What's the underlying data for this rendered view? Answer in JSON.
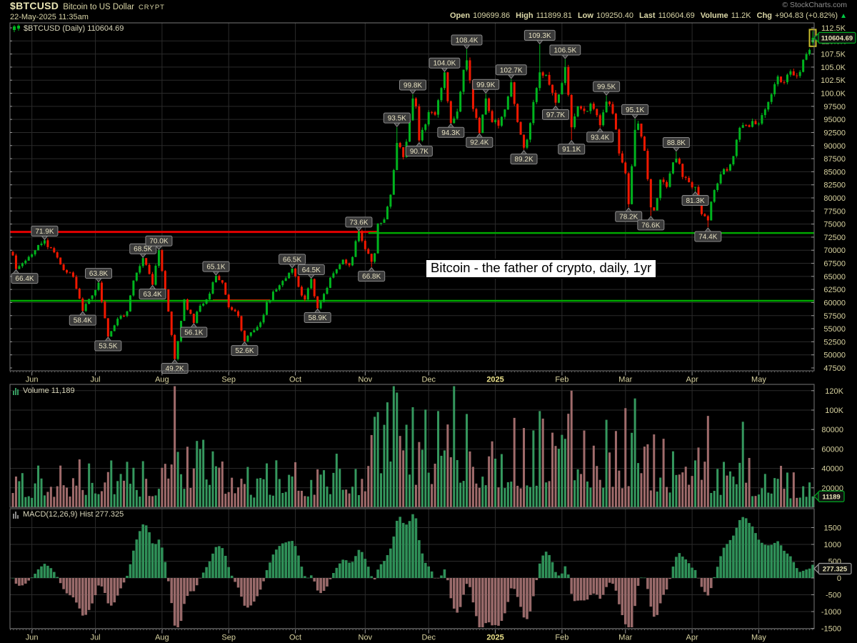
{
  "header": {
    "symbol": "$BTCUSD",
    "name": "Bitcoin to US Dollar",
    "exchange": "CRYPT",
    "datetime": "22-May-2025 11:35am",
    "copyright": "© StockCharts.com",
    "quote": {
      "open_label": "Open",
      "open": "109699.86",
      "high_label": "High",
      "high": "111899.81",
      "low_label": "Low",
      "low": "109250.40",
      "last_label": "Last",
      "last": "110604.69",
      "volume_label": "Volume",
      "volume": "11.2K",
      "chg_label": "Chg",
      "chg": "+904.83 (+0.82%)",
      "arrow": "▲"
    }
  },
  "panels": {
    "main": {
      "title": "$BTCUSD (Daily) 110604.69",
      "badge": "110604.69"
    },
    "volume": {
      "title": "Volume 11,189",
      "badge": "11189"
    },
    "macd": {
      "title": "MACD(12,26,9) Hist 277.325",
      "badge": "277.325"
    }
  },
  "annotation": {
    "text": "Bitcoin - the father of crypto, daily, 1yr"
  },
  "colors": {
    "up": "#00b41e",
    "down": "#f01800",
    "vol_up": "#35985e",
    "vol_down": "#a06b6b",
    "macd_up": "#2f9058",
    "macd_down": "#996a6a",
    "grid": "#2b2b2b",
    "axis_text": "#d9d3a0",
    "axis_text_bright": "#ece28a",
    "panel_border": "#777777",
    "tick": "#999999",
    "hline_red": "#e40000",
    "hline_green": "#00a800",
    "badge_green": "#00aa22",
    "badge_gray": "#9a9a9a",
    "badge_bg": "#101010",
    "badge_text": "#eae4b8",
    "callout_bg": "#3a3a3a",
    "callout_border": "#8a8a8a",
    "callout_text": "#e8e2c2",
    "highlight": "#c9bd2d",
    "title_text": "#d9d6ba"
  },
  "chart_data": {
    "type": "candlestick",
    "title": "$BTCUSD (Daily)",
    "timeframe": "daily, 1 year (May 2024 - 22 May 2025)",
    "x_axis": {
      "num_bars": 253,
      "months": [
        {
          "label": "Jun",
          "idx": 6
        },
        {
          "label": "Jul",
          "idx": 26
        },
        {
          "label": "Aug",
          "idx": 47
        },
        {
          "label": "Sep",
          "idx": 68
        },
        {
          "label": "Oct",
          "idx": 89
        },
        {
          "label": "Nov",
          "idx": 111
        },
        {
          "label": "Dec",
          "idx": 131
        },
        {
          "label": "2025",
          "idx": 152,
          "bold": true
        },
        {
          "label": "Feb",
          "idx": 173
        },
        {
          "label": "Mar",
          "idx": 193
        },
        {
          "label": "Apr",
          "idx": 214
        },
        {
          "label": "May",
          "idx": 235
        }
      ]
    },
    "y_axis": {
      "min": 47500,
      "max": 112500,
      "ticks": [
        {
          "v": 112500,
          "label": "112.5K"
        },
        {
          "v": 110000,
          "label": "110.0K"
        },
        {
          "v": 107500,
          "label": "107.5K"
        },
        {
          "v": 105000,
          "label": "105.0K"
        },
        {
          "v": 102500,
          "label": "102.5K"
        },
        {
          "v": 100000,
          "label": "100.0K"
        },
        {
          "v": 97500,
          "label": "97500"
        },
        {
          "v": 95000,
          "label": "95000"
        },
        {
          "v": 92500,
          "label": "92500"
        },
        {
          "v": 90000,
          "label": "90000"
        },
        {
          "v": 87500,
          "label": "87500"
        },
        {
          "v": 85000,
          "label": "85000"
        },
        {
          "v": 82500,
          "label": "82500"
        },
        {
          "v": 80000,
          "label": "80000"
        },
        {
          "v": 77500,
          "label": "77500"
        },
        {
          "v": 75000,
          "label": "75000"
        },
        {
          "v": 72500,
          "label": "72500"
        },
        {
          "v": 70000,
          "label": "70000"
        },
        {
          "v": 67500,
          "label": "67500"
        },
        {
          "v": 65000,
          "label": "65000"
        },
        {
          "v": 62500,
          "label": "62500"
        },
        {
          "v": 60000,
          "label": "60000"
        },
        {
          "v": 57500,
          "label": "57500"
        },
        {
          "v": 55000,
          "label": "55000"
        },
        {
          "v": 52500,
          "label": "52500"
        },
        {
          "v": 50000,
          "label": "50000"
        },
        {
          "v": 47500,
          "label": "47500"
        }
      ]
    },
    "last_bar": {
      "open": 109699.86,
      "high": 111899.81,
      "low": 109250.4,
      "close": 110604.69
    },
    "highlight_last": true,
    "close_keypoints": [
      [
        0,
        69000
      ],
      [
        1,
        66400
      ],
      [
        4,
        68000
      ],
      [
        6,
        69200
      ],
      [
        10,
        71900
      ],
      [
        13,
        69600
      ],
      [
        16,
        66200
      ],
      [
        19,
        64900
      ],
      [
        22,
        58400
      ],
      [
        24,
        60700
      ],
      [
        27,
        63800
      ],
      [
        29,
        57000
      ],
      [
        30,
        53500
      ],
      [
        33,
        56900
      ],
      [
        36,
        58300
      ],
      [
        38,
        64200
      ],
      [
        41,
        68500
      ],
      [
        44,
        63400
      ],
      [
        46,
        70000
      ],
      [
        48,
        62500
      ],
      [
        50,
        53800
      ],
      [
        51,
        49200
      ],
      [
        53,
        56500
      ],
      [
        54,
        60600
      ],
      [
        57,
        56100
      ],
      [
        59,
        59400
      ],
      [
        61,
        60600
      ],
      [
        64,
        65100
      ],
      [
        66,
        63800
      ],
      [
        68,
        59100
      ],
      [
        71,
        57400
      ],
      [
        73,
        52600
      ],
      [
        76,
        54700
      ],
      [
        78,
        56200
      ],
      [
        80,
        60100
      ],
      [
        84,
        63300
      ],
      [
        88,
        66500
      ],
      [
        90,
        63000
      ],
      [
        92,
        60600
      ],
      [
        94,
        64500
      ],
      [
        96,
        58900
      ],
      [
        99,
        62800
      ],
      [
        101,
        65600
      ],
      [
        104,
        68200
      ],
      [
        106,
        67100
      ],
      [
        109,
        73600
      ],
      [
        111,
        70200
      ],
      [
        113,
        67800
      ],
      [
        114,
        69400
      ],
      [
        115,
        75100
      ],
      [
        117,
        75900
      ],
      [
        119,
        80600
      ],
      [
        121,
        90500
      ],
      [
        123,
        87800
      ],
      [
        125,
        94800
      ],
      [
        126,
        99000
      ],
      [
        127,
        97500
      ],
      [
        128,
        91000
      ],
      [
        129,
        93000
      ],
      [
        131,
        96400
      ],
      [
        133,
        95900
      ],
      [
        135,
        101000
      ],
      [
        136,
        104000
      ],
      [
        138,
        94300
      ],
      [
        140,
        96500
      ],
      [
        142,
        104500
      ],
      [
        143,
        106300
      ],
      [
        145,
        97000
      ],
      [
        147,
        92400
      ],
      [
        149,
        99000
      ],
      [
        151,
        94500
      ],
      [
        153,
        93800
      ],
      [
        155,
        96900
      ],
      [
        157,
        102100
      ],
      [
        159,
        94500
      ],
      [
        161,
        89600
      ],
      [
        163,
        94300
      ],
      [
        165,
        101000
      ],
      [
        166,
        104000
      ],
      [
        168,
        103500
      ],
      [
        170,
        100100
      ],
      [
        171,
        98200
      ],
      [
        174,
        105000
      ],
      [
        176,
        93500
      ],
      [
        178,
        97500
      ],
      [
        180,
        96600
      ],
      [
        182,
        98000
      ],
      [
        184,
        95800
      ],
      [
        185,
        93900
      ],
      [
        187,
        98400
      ],
      [
        189,
        96100
      ],
      [
        191,
        88500
      ],
      [
        193,
        84700
      ],
      [
        194,
        78800
      ],
      [
        196,
        93000
      ],
      [
        197,
        94200
      ],
      [
        199,
        89000
      ],
      [
        201,
        78200
      ],
      [
        202,
        77600
      ],
      [
        204,
        83500
      ],
      [
        206,
        82100
      ],
      [
        208,
        86800
      ],
      [
        209,
        87500
      ],
      [
        211,
        84000
      ],
      [
        213,
        83000
      ],
      [
        215,
        82100
      ],
      [
        217,
        76900
      ],
      [
        219,
        75700
      ],
      [
        221,
        81500
      ],
      [
        223,
        84500
      ],
      [
        225,
        85200
      ],
      [
        227,
        88000
      ],
      [
        229,
        93400
      ],
      [
        231,
        93900
      ],
      [
        233,
        94700
      ],
      [
        235,
        94200
      ],
      [
        237,
        96900
      ],
      [
        239,
        99800
      ],
      [
        241,
        103200
      ],
      [
        243,
        102100
      ],
      [
        245,
        104200
      ],
      [
        247,
        103300
      ],
      [
        249,
        106400
      ],
      [
        251,
        108300
      ],
      [
        252,
        110604.69
      ]
    ],
    "callouts": [
      {
        "label": "66.4K",
        "idx": 1,
        "value": 66400,
        "side": "low"
      },
      {
        "label": "71.9K",
        "idx": 10,
        "value": 71900,
        "side": "high"
      },
      {
        "label": "58.4K",
        "idx": 22,
        "value": 58400,
        "side": "low"
      },
      {
        "label": "63.8K",
        "idx": 27,
        "value": 63800,
        "side": "high"
      },
      {
        "label": "53.5K",
        "idx": 30,
        "value": 53500,
        "side": "low"
      },
      {
        "label": "68.5K",
        "idx": 41,
        "value": 68500,
        "side": "high"
      },
      {
        "label": "63.4K",
        "idx": 44,
        "value": 63400,
        "side": "low"
      },
      {
        "label": "70.0K",
        "idx": 46,
        "value": 70000,
        "side": "high"
      },
      {
        "label": "49.2K",
        "idx": 51,
        "value": 49200,
        "side": "low"
      },
      {
        "label": "56.1K",
        "idx": 57,
        "value": 56100,
        "side": "low"
      },
      {
        "label": "65.1K",
        "idx": 64,
        "value": 65100,
        "side": "high"
      },
      {
        "label": "52.6K",
        "idx": 73,
        "value": 52600,
        "side": "low"
      },
      {
        "label": "66.5K",
        "idx": 88,
        "value": 66500,
        "side": "high"
      },
      {
        "label": "64.5K",
        "idx": 94,
        "value": 64500,
        "side": "high"
      },
      {
        "label": "58.9K",
        "idx": 96,
        "value": 58900,
        "side": "low"
      },
      {
        "label": "73.6K",
        "idx": 109,
        "value": 73600,
        "side": "high"
      },
      {
        "label": "66.8K",
        "idx": 113,
        "value": 66800,
        "side": "low"
      },
      {
        "label": "93.5K",
        "idx": 121,
        "value": 93500,
        "side": "high"
      },
      {
        "label": "99.8K",
        "idx": 126,
        "value": 99800,
        "side": "high"
      },
      {
        "label": "90.7K",
        "idx": 128,
        "value": 90700,
        "side": "low"
      },
      {
        "label": "104.0K",
        "idx": 136,
        "value": 104000,
        "side": "high"
      },
      {
        "label": "94.3K",
        "idx": 138,
        "value": 94300,
        "side": "low"
      },
      {
        "label": "108.4K",
        "idx": 143,
        "value": 108400,
        "side": "high"
      },
      {
        "label": "92.4K",
        "idx": 147,
        "value": 92400,
        "side": "low"
      },
      {
        "label": "99.9K",
        "idx": 149,
        "value": 99900,
        "side": "high"
      },
      {
        "label": "102.7K",
        "idx": 157,
        "value": 102700,
        "side": "high"
      },
      {
        "label": "89.2K",
        "idx": 161,
        "value": 89200,
        "side": "low"
      },
      {
        "label": "109.3K",
        "idx": 166,
        "value": 109300,
        "side": "high"
      },
      {
        "label": "97.7K",
        "idx": 171,
        "value": 97700,
        "side": "low"
      },
      {
        "label": "106.5K",
        "idx": 174,
        "value": 106500,
        "side": "high"
      },
      {
        "label": "91.1K",
        "idx": 176,
        "value": 91100,
        "side": "low"
      },
      {
        "label": "93.4K",
        "idx": 185,
        "value": 93400,
        "side": "low"
      },
      {
        "label": "99.5K",
        "idx": 187,
        "value": 99500,
        "side": "high"
      },
      {
        "label": "78.2K",
        "idx": 194,
        "value": 78200,
        "side": "low"
      },
      {
        "label": "95.1K",
        "idx": 196,
        "value": 95100,
        "side": "high"
      },
      {
        "label": "76.6K",
        "idx": 201,
        "value": 76600,
        "side": "low"
      },
      {
        "label": "88.8K",
        "idx": 209,
        "value": 88800,
        "side": "high"
      },
      {
        "label": "81.3K",
        "idx": 215,
        "value": 81300,
        "side": "low"
      },
      {
        "label": "74.4K",
        "idx": 219,
        "value": 74400,
        "side": "low"
      }
    ],
    "hlines": [
      {
        "value": 73500,
        "from": 0,
        "to": 115,
        "color": "red",
        "width": 3
      },
      {
        "value": 73300,
        "from": 112,
        "to": 252,
        "color": "green",
        "width": 2.5
      },
      {
        "value": 60480,
        "from": 63,
        "to": 81,
        "color": "red",
        "width": 2
      },
      {
        "value": 60330,
        "from": 0,
        "to": 252,
        "color": "green",
        "width": 2.5
      }
    ],
    "volume": {
      "last": 11189,
      "ticks": [
        {
          "v": 120000,
          "label": "120K"
        },
        {
          "v": 100000,
          "label": "100K"
        },
        {
          "v": 80000,
          "label": "80000"
        },
        {
          "v": 60000,
          "label": "60000"
        },
        {
          "v": 40000,
          "label": "40000"
        },
        {
          "v": 20000,
          "label": "20000"
        }
      ],
      "level_keypoints": [
        [
          0,
          26000
        ],
        [
          20,
          30000
        ],
        [
          45,
          30000
        ],
        [
          51,
          55000
        ],
        [
          70,
          28000
        ],
        [
          90,
          30000
        ],
        [
          110,
          36000
        ],
        [
          115,
          65000
        ],
        [
          130,
          62000
        ],
        [
          145,
          58000
        ],
        [
          160,
          52000
        ],
        [
          175,
          60000
        ],
        [
          190,
          55000
        ],
        [
          200,
          48000
        ],
        [
          215,
          38000
        ],
        [
          230,
          34000
        ],
        [
          245,
          26000
        ],
        [
          252,
          14000
        ]
      ],
      "spikes": {
        "51": 128000,
        "115": 98000,
        "118": 108000,
        "120": 126000,
        "121": 118000,
        "126": 103000,
        "134": 99000,
        "139": 127000,
        "143": 96000,
        "158": 92000,
        "166": 99000,
        "176": 120000,
        "187": 90000,
        "193": 102000,
        "196": 112000,
        "219": 94000,
        "230": 88000
      }
    },
    "macd": {
      "params": [
        12,
        26,
        9
      ],
      "hist_last": 277.325,
      "peak_scale": 1900,
      "ticks": [
        {
          "v": 1500,
          "label": "1500"
        },
        {
          "v": 1000,
          "label": "1000"
        },
        {
          "v": 500,
          "label": "500"
        },
        {
          "v": 0,
          "label": "0"
        },
        {
          "v": -500,
          "label": "-500"
        },
        {
          "v": -1000,
          "label": "-1000"
        },
        {
          "v": -1500,
          "label": "-1500"
        }
      ]
    }
  }
}
